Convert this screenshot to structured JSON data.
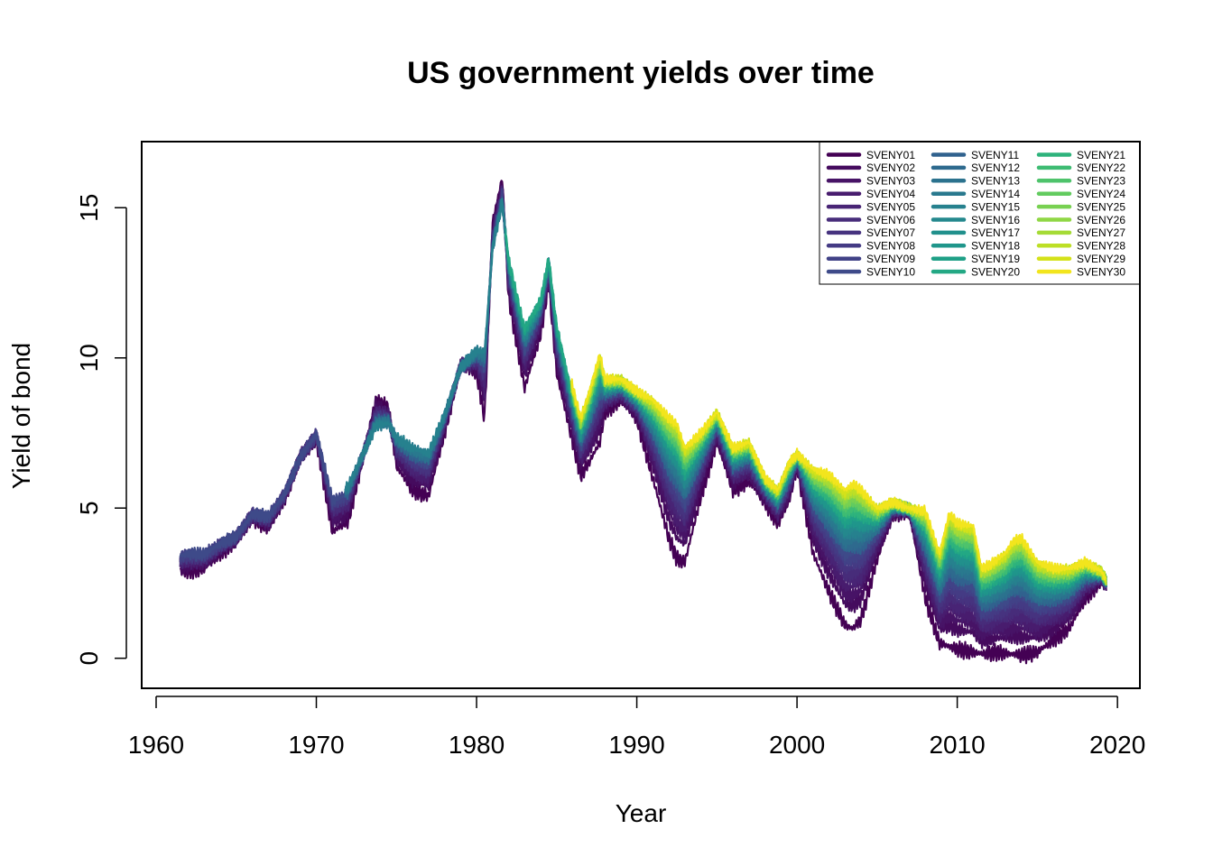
{
  "chart_data": {
    "type": "line",
    "title": "US government yields over time",
    "xlabel": "Year",
    "ylabel": "Yield of bond",
    "xlim": [
      1958.9,
      1960.0
    ],
    "xlim_note": "",
    "xrange": [
      1959.1,
      2021.4
    ],
    "yrange": [
      -1.0,
      17.2
    ],
    "x_ticks": [
      1960,
      1970,
      1980,
      1990,
      2000,
      2010,
      2020
    ],
    "y_ticks": [
      0,
      5,
      10,
      15
    ],
    "legend_position": "top-right",
    "legend_columns": 3,
    "grid": false,
    "series_start_years": {
      "SVENY01-SVENY07": 1961.5,
      "SVENY08-SVENY10": 1971.8,
      "SVENY11-SVENY15": 1971.8,
      "SVENY16-SVENY20": 1981.8,
      "SVENY21-SVENY30": 1985.9
    },
    "series": [
      {
        "name": "SVENY01",
        "color": "#440154"
      },
      {
        "name": "SVENY02",
        "color": "#450B5E"
      },
      {
        "name": "SVENY03",
        "color": "#471366"
      },
      {
        "name": "SVENY04",
        "color": "#481C6E"
      },
      {
        "name": "SVENY05",
        "color": "#482475"
      },
      {
        "name": "SVENY06",
        "color": "#472C7A"
      },
      {
        "name": "SVENY07",
        "color": "#46337F"
      },
      {
        "name": "SVENY08",
        "color": "#443B84"
      },
      {
        "name": "SVENY09",
        "color": "#414287"
      },
      {
        "name": "SVENY10",
        "color": "#3E4A89"
      },
      {
        "name": "SVENY11",
        "color": "#3B518B"
      },
      {
        "name": "SVENY12",
        "color": "#38588C"
      },
      {
        "name": "SVENY13",
        "color": "#355E8D"
      },
      {
        "name": "SVENY14",
        "color": "#31658E"
      },
      {
        "name": "SVENY15",
        "color": "#2E6B8E"
      },
      {
        "name": "SVENY16",
        "color": "#2C718E"
      },
      {
        "name": "SVENY17",
        "color": "#29788E"
      },
      {
        "name": "SVENY18",
        "color": "#277E8E"
      },
      {
        "name": "SVENY19",
        "color": "#24848E"
      },
      {
        "name": "SVENY20",
        "color": "#218A8D"
      },
      {
        "name": "SVENY21",
        "color": "#1F908C"
      },
      {
        "name": "SVENY22",
        "color": "#1F978B"
      },
      {
        "name": "SVENY23",
        "color": "#1F9D89"
      },
      {
        "name": "SVENY24",
        "color": "#22A385"
      },
      {
        "name": "SVENY25",
        "color": "#27A982"
      },
      {
        "name": "SVENY26",
        "color": "#2FB07E"
      },
      {
        "name": "SVENY27",
        "color": "#3AB679"
      },
      {
        "name": "SVENY28",
        "color": "#47BC72"
      },
      {
        "name": "SVENY29",
        "color": "#55C16A"
      },
      {
        "name": "SVENY30",
        "color": "#63C762"
      }
    ],
    "legend_colors": [
      "#440154",
      "#450B5E",
      "#471366",
      "#481C6E",
      "#482475",
      "#472C7A",
      "#46337F",
      "#443B84",
      "#414287",
      "#3E4A89",
      "#30628E",
      "#2E6A8E",
      "#2B728E",
      "#29798E",
      "#26818E",
      "#24888D",
      "#21908C",
      "#1F968B",
      "#1FA087",
      "#23A884",
      "#2EB37C",
      "#3EBC73",
      "#4EC36B",
      "#62CB5F",
      "#78D151",
      "#8FD744",
      "#A5DB36",
      "#BDDF26",
      "#D4E21A",
      "#F2E51D"
    ],
    "yield_curve": {
      "years": [
        1961.5,
        1962.0,
        1963.0,
        1964.0,
        1965.0,
        1966.0,
        1967.0,
        1968.0,
        1969.0,
        1970.0,
        1971.0,
        1972.0,
        1973.0,
        1973.7,
        1974.5,
        1975.0,
        1976.0,
        1977.0,
        1978.0,
        1979.0,
        1980.0,
        1980.5,
        1981.0,
        1981.6,
        1982.0,
        1982.5,
        1983.0,
        1984.0,
        1984.5,
        1985.0,
        1986.0,
        1986.5,
        1987.0,
        1987.7,
        1988.0,
        1989.0,
        1990.0,
        1991.0,
        1992.0,
        1992.5,
        1993.0,
        1994.0,
        1995.0,
        1996.0,
        1997.0,
        1998.0,
        1998.8,
        1999.5,
        2000.0,
        2001.0,
        2002.0,
        2003.0,
        2003.5,
        2004.0,
        2005.0,
        2006.0,
        2007.0,
        2008.0,
        2008.9,
        2009.5,
        2010.0,
        2011.0,
        2011.5,
        2012.0,
        2012.5,
        2013.0,
        2013.5,
        2014.0,
        2015.0,
        2016.0,
        2017.0,
        2018.0,
        2019.0,
        2019.3
      ],
      "short": [
        2.9,
        2.9,
        3.0,
        3.5,
        3.9,
        4.7,
        4.3,
        5.3,
        6.7,
        7.3,
        4.2,
        4.6,
        6.9,
        8.6,
        8.3,
        6.4,
        5.6,
        5.4,
        7.5,
        9.8,
        9.5,
        8.0,
        14.5,
        16.0,
        12.0,
        10.5,
        9.0,
        10.8,
        12.5,
        9.5,
        7.2,
        6.1,
        6.5,
        7.2,
        8.2,
        8.6,
        8.0,
        6.0,
        4.0,
        3.3,
        3.2,
        5.4,
        7.2,
        5.6,
        5.9,
        5.2,
        4.5,
        5.2,
        6.4,
        3.5,
        2.2,
        1.1,
        1.0,
        1.3,
        3.3,
        4.8,
        4.9,
        2.0,
        0.5,
        0.4,
        0.3,
        0.2,
        0.15,
        0.15,
        0.2,
        0.15,
        0.15,
        0.1,
        0.2,
        0.6,
        1.0,
        2.0,
        2.6,
        2.4
      ],
      "long": [
        3.9,
        4.0,
        3.9,
        4.1,
        4.2,
        4.9,
        5.1,
        5.6,
        6.7,
        7.6,
        6.2,
        6.3,
        6.9,
        7.3,
        7.6,
        7.8,
        7.7,
        7.5,
        8.4,
        9.6,
        10.6,
        11.3,
        13.2,
        14.8,
        13.6,
        12.5,
        11.5,
        12.2,
        13.5,
        11.5,
        9.0,
        8.0,
        8.8,
        10.1,
        9.3,
        9.3,
        8.9,
        8.6,
        8.0,
        7.8,
        7.0,
        7.5,
        8.2,
        7.0,
        7.2,
        6.0,
        5.6,
        6.5,
        6.8,
        6.3,
        6.1,
        5.6,
        5.8,
        5.6,
        5.0,
        5.2,
        5.0,
        4.9,
        3.5,
        4.8,
        4.5,
        4.4,
        3.0,
        3.1,
        3.3,
        3.5,
        3.9,
        4.0,
        3.2,
        3.0,
        3.0,
        3.2,
        2.9,
        2.6
      ],
      "short_series_count": 30,
      "long_start_years": [
        1961.5,
        1971.8,
        1981.8,
        1985.9
      ],
      "band_note": ""
    }
  }
}
